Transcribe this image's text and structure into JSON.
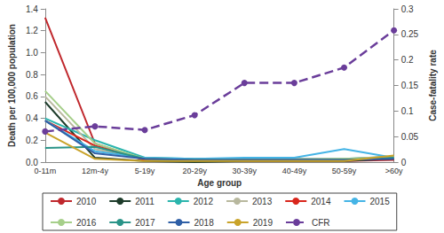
{
  "chart_data": {
    "type": "line",
    "x_label": "Age group",
    "y_label": "Death per 100,000 population",
    "y2_label": "Case-fatality rate",
    "categories": [
      "0-11m",
      "12m-4y",
      "5-19y",
      "20-29y",
      "30-39y",
      "40-49y",
      "50-59y",
      ">60y"
    ],
    "ylim": [
      0,
      1.4
    ],
    "yticks": [
      {
        "value": 0,
        "label": "0.0"
      },
      0.2,
      0.4,
      0.6,
      0.8,
      {
        "value": 1,
        "label": "1.0"
      },
      1.2,
      1.4
    ],
    "y2lim": [
      0,
      0.3
    ],
    "y2ticks": [
      0,
      0.05,
      0.1,
      0.15,
      0.2,
      0.25,
      0.3
    ],
    "grid": false,
    "legend": "bottom",
    "series": [
      {
        "name": "2010",
        "color": "#c0282d",
        "line_style": "solid",
        "marker": "none",
        "values": [
          1.32,
          0.17,
          0.02,
          0.01,
          0.01,
          0.01,
          0.01,
          0.02
        ]
      },
      {
        "name": "2011",
        "color": "#1d3b2a",
        "line_style": "solid",
        "marker": "none",
        "values": [
          0.55,
          0.04,
          0.01,
          0.0,
          0.01,
          0.01,
          0.01,
          0.03
        ]
      },
      {
        "name": "2012",
        "color": "#2bb5ad",
        "line_style": "solid",
        "marker": "none",
        "values": [
          0.4,
          0.2,
          0.04,
          0.03,
          0.03,
          0.03,
          0.03,
          0.05
        ]
      },
      {
        "name": "2013",
        "color": "#b8b89e",
        "line_style": "solid",
        "marker": "none",
        "values": [
          0.6,
          0.12,
          0.03,
          0.02,
          0.02,
          0.03,
          0.03,
          0.05
        ]
      },
      {
        "name": "2014",
        "color": "#d9261c",
        "line_style": "solid",
        "marker": "none",
        "values": [
          0.38,
          0.15,
          0.02,
          0.02,
          0.02,
          0.02,
          0.02,
          0.03
        ]
      },
      {
        "name": "2015",
        "color": "#45b4e6",
        "line_style": "solid",
        "marker": "none",
        "values": [
          0.38,
          0.1,
          0.04,
          0.03,
          0.04,
          0.04,
          0.12,
          0.04
        ]
      },
      {
        "name": "2016",
        "color": "#a6cf8a",
        "line_style": "solid",
        "marker": "none",
        "values": [
          0.65,
          0.17,
          0.03,
          0.02,
          0.02,
          0.02,
          0.03,
          0.04
        ]
      },
      {
        "name": "2017",
        "color": "#2a9488",
        "line_style": "solid",
        "marker": "none",
        "values": [
          0.13,
          0.14,
          0.03,
          0.02,
          0.02,
          0.02,
          0.02,
          0.04
        ]
      },
      {
        "name": "2018",
        "color": "#2f5fa6",
        "line_style": "solid",
        "marker": "none",
        "values": [
          0.38,
          0.08,
          0.03,
          0.02,
          0.02,
          0.02,
          0.02,
          0.03
        ]
      },
      {
        "name": "2019",
        "color": "#c9a32a",
        "line_style": "solid",
        "marker": "none",
        "values": [
          0.27,
          0.03,
          0.01,
          0.01,
          0.01,
          0.01,
          0.01,
          0.06
        ]
      },
      {
        "name": "CFR",
        "color": "#6a3d9a",
        "axis": "y2",
        "line_style": "dashed",
        "marker": "circle",
        "values": [
          0.06,
          0.07,
          0.063,
          0.092,
          0.155,
          0.155,
          0.185,
          0.258
        ]
      }
    ]
  }
}
